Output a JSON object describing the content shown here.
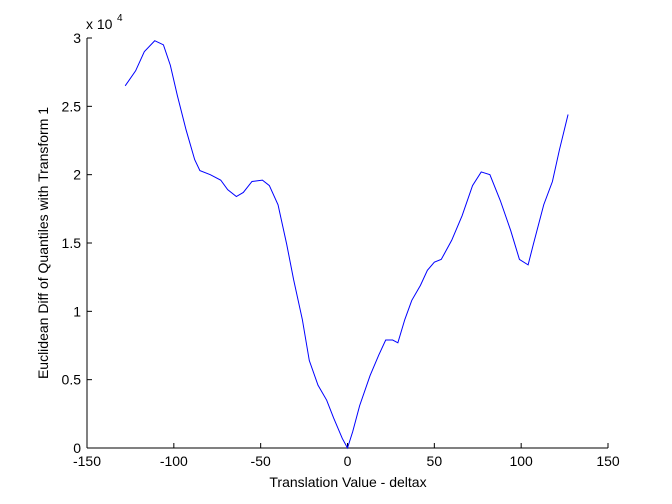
{
  "chart_data": {
    "type": "line",
    "xlabel": "Translation Value - deltax",
    "ylabel": "Euclidean Diff of Quantiles with Transform 1",
    "y_multiplier": "x 10",
    "y_multiplier_exponent": "4",
    "xlim": [
      -150,
      150
    ],
    "xticks": [
      -150,
      -100,
      -50,
      0,
      50,
      100,
      150
    ],
    "ylim": [
      0,
      3
    ],
    "yticks": [
      0,
      0.5,
      1,
      1.5,
      2,
      2.5,
      3
    ],
    "grid": false,
    "series": [
      {
        "color": "#0000ff",
        "x": [
          -128,
          -122,
          -117,
          -111,
          -106,
          -102,
          -98,
          -93,
          -88,
          -85,
          -79,
          -73,
          -69,
          -64,
          -60,
          -55,
          -49,
          -45,
          -40,
          -35,
          -31,
          -26,
          -22,
          -17,
          -12,
          -8,
          -3,
          0,
          3,
          7,
          13,
          18,
          22,
          26,
          29,
          33,
          37,
          42,
          46,
          50,
          54,
          60,
          66,
          72,
          77,
          82,
          88,
          94,
          99,
          104,
          107,
          113,
          118,
          122,
          127
        ],
        "values": [
          2.65,
          2.76,
          2.9,
          2.98,
          2.95,
          2.8,
          2.58,
          2.33,
          2.11,
          2.03,
          2.0,
          1.96,
          1.89,
          1.84,
          1.87,
          1.95,
          1.96,
          1.92,
          1.78,
          1.49,
          1.23,
          0.94,
          0.64,
          0.46,
          0.35,
          0.22,
          0.07,
          0,
          0.12,
          0.31,
          0.53,
          0.68,
          0.79,
          0.79,
          0.77,
          0.94,
          1.08,
          1.19,
          1.3,
          1.36,
          1.38,
          1.52,
          1.7,
          1.92,
          2.02,
          2.0,
          1.81,
          1.59,
          1.38,
          1.34,
          1.49,
          1.78,
          1.95,
          2.18,
          2.44
        ]
      }
    ]
  }
}
